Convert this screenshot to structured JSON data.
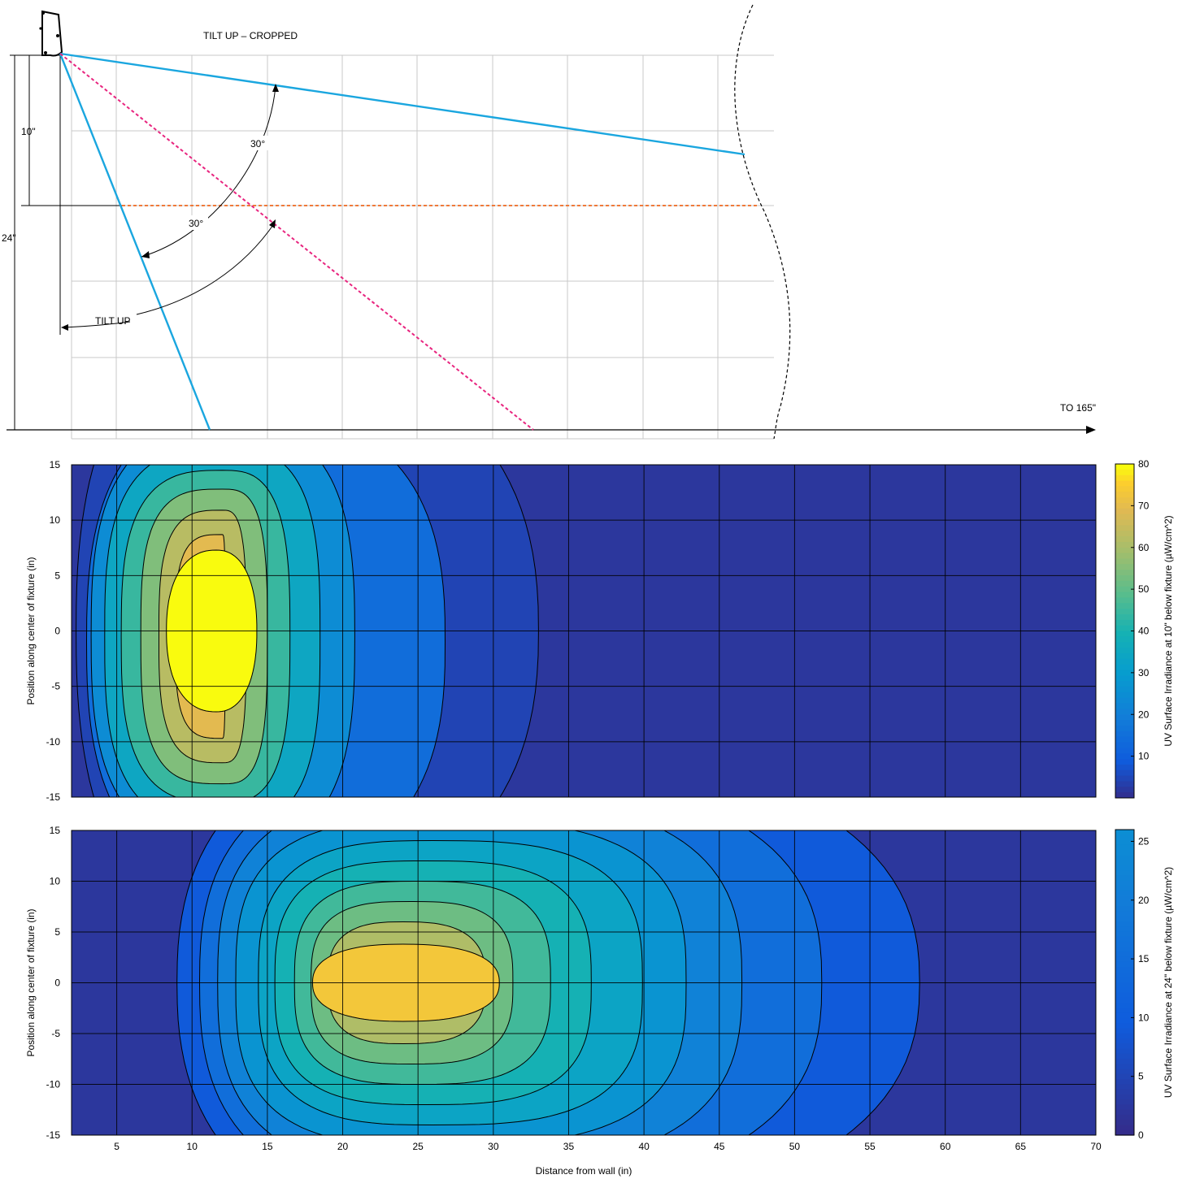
{
  "diagram": {
    "title": "TILT UP – CROPPED",
    "tilt_label": "TILT UP",
    "angle_labels": [
      "30°",
      "30°"
    ],
    "height_labels": [
      "10\"",
      "24\""
    ],
    "axis_end_label": "TO 165\"",
    "colors": {
      "beam": "#1aa6df",
      "center_ray": "#e8257f",
      "level_line": "#f07a3a",
      "grid": "#c8c8c8"
    }
  },
  "chart_data": [
    {
      "type": "heatmap",
      "title": "",
      "xlabel": "Distance from wall (in)",
      "ylabel": "Position along center of fixture (in)",
      "colorbar_label": "UV Surface Irradiance at 10\" below fixture (µW/cm^2)",
      "xlim": [
        2,
        70
      ],
      "ylim": [
        -15,
        15
      ],
      "x_ticks": [
        5,
        10,
        15,
        20,
        25,
        30,
        35,
        40,
        45,
        50,
        55,
        60,
        65,
        70
      ],
      "y_ticks": [
        15,
        10,
        5,
        0,
        -5,
        -10,
        -15
      ],
      "colorbar_range": [
        0,
        80
      ],
      "colorbar_ticks": [
        10,
        20,
        30,
        40,
        50,
        60,
        70,
        80
      ],
      "peak": {
        "x": 11.6,
        "y": 0,
        "value": 80
      },
      "contour_levels": [
        2,
        5,
        15,
        25,
        35,
        45,
        55,
        65,
        75
      ]
    },
    {
      "type": "heatmap",
      "title": "",
      "xlabel": "Distance from wall (in)",
      "ylabel": "Position along center of fixture (in)",
      "colorbar_label": "UV Surface Irradiance at 24\" below fixture (µW/cm^2)",
      "xlim": [
        2,
        70
      ],
      "ylim": [
        -15,
        15
      ],
      "x_ticks": [
        5,
        10,
        15,
        20,
        25,
        30,
        35,
        40,
        45,
        50,
        55,
        60,
        65,
        70
      ],
      "y_ticks": [
        15,
        10,
        5,
        0,
        -5,
        -10,
        -15
      ],
      "colorbar_range": [
        0,
        26
      ],
      "colorbar_ticks": [
        0,
        5,
        10,
        15,
        20,
        25
      ],
      "peak": {
        "x": 24,
        "y": 0,
        "value": 26
      },
      "contour_levels": [
        2,
        4,
        6,
        8,
        10,
        12,
        14,
        16,
        18,
        20,
        22,
        24
      ]
    }
  ]
}
